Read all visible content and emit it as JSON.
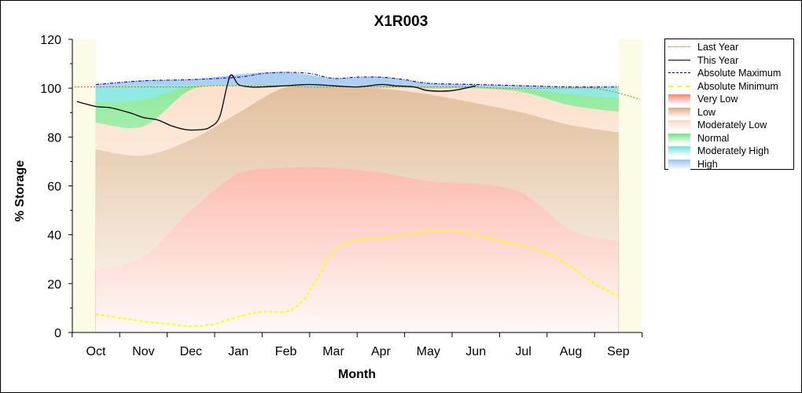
{
  "window": {
    "background": "#ffffff"
  },
  "chart_data": {
    "type": "area",
    "title": "X1R003",
    "xlabel": "Month",
    "ylabel": "% Storage",
    "categories": [
      "Oct",
      "Nov",
      "Dec",
      "Jan",
      "Feb",
      "Mar",
      "Apr",
      "May",
      "Jun",
      "Jul",
      "Aug",
      "Sep"
    ],
    "ylim": [
      0,
      120
    ],
    "yticks": [
      0,
      20,
      40,
      60,
      80,
      100,
      120
    ],
    "grid": false,
    "legend_position": "right",
    "bands": [
      {
        "name": "Very Low",
        "color": "#fa8c78",
        "lower": [
          0,
          0,
          0,
          0,
          0,
          0,
          0,
          0,
          0,
          0,
          0,
          0
        ],
        "upper": [
          25.5,
          31,
          50,
          65,
          67.5,
          67.5,
          65.5,
          62,
          61,
          57,
          42,
          37.5
        ]
      },
      {
        "name": "Low",
        "color": "#dcb48c",
        "lower": [
          25.5,
          31,
          50,
          65,
          67.5,
          67.5,
          65.5,
          62,
          61,
          57,
          42,
          37.5
        ],
        "upper": [
          75,
          72.5,
          79,
          90,
          100.5,
          100.5,
          100,
          97.5,
          94,
          90,
          85,
          82
        ]
      },
      {
        "name": "Moderately Low",
        "color": "#fbdcc3",
        "lower": [
          75,
          72.5,
          79,
          90,
          100.5,
          100.5,
          100,
          97.5,
          94,
          90,
          85,
          82
        ],
        "upper": [
          86,
          84.5,
          99.5,
          101,
          101,
          100.5,
          100.5,
          100,
          100,
          98.5,
          93,
          90.5
        ]
      },
      {
        "name": "Normal",
        "color": "#7de68c",
        "lower": [
          86,
          84.5,
          99.5,
          101,
          101,
          100.5,
          100.5,
          100,
          100,
          98.5,
          93,
          90.5
        ],
        "upper": [
          94.5,
          95.5,
          101,
          101,
          101,
          100.5,
          101,
          100.5,
          100.5,
          100,
          97.5,
          96
        ]
      },
      {
        "name": "Moderately High",
        "color": "#78e6dc",
        "lower": [
          94.5,
          95.5,
          101,
          101,
          101,
          100.5,
          101,
          100.5,
          100.5,
          100,
          97.5,
          96
        ],
        "upper": [
          100,
          101.5,
          101.5,
          101.5,
          101.5,
          101,
          101,
          100.5,
          100.5,
          100.5,
          100.5,
          100.5
        ]
      },
      {
        "name": "High",
        "color": "#a0c8f0",
        "lower": [
          100,
          101.5,
          101.5,
          101.5,
          101.5,
          101,
          101,
          100.5,
          100.5,
          100.5,
          100.5,
          100.5
        ],
        "upper": [
          101.5,
          103,
          103.5,
          105.5,
          106.5,
          104,
          104.5,
          102,
          101.5,
          101,
          100.5,
          100.5
        ]
      }
    ],
    "series": [
      {
        "name": "Last Year",
        "color": "#d2691e",
        "style": "dotted",
        "x": [
          -0.45,
          0,
          0.5,
          1,
          1.5,
          2,
          2.5,
          3,
          3.5,
          4,
          4.5,
          5,
          5.5,
          6,
          6.5,
          7,
          7.5,
          8,
          8.5,
          9,
          9.5,
          10,
          10.5,
          11,
          11.45
        ],
        "values": [
          100.5,
          100.5,
          100.5,
          100.5,
          100.5,
          100.5,
          101,
          101,
          101,
          101,
          100.5,
          100.5,
          100.5,
          100.5,
          100.5,
          100.5,
          100.5,
          100.5,
          100,
          100,
          100,
          100,
          100,
          98,
          95.5
        ]
      },
      {
        "name": "This Year",
        "color": "#000000",
        "style": "solid",
        "x": [
          -0.4,
          0,
          0.3,
          0.7,
          1,
          1.3,
          1.6,
          1.9,
          2.2,
          2.4,
          2.6,
          2.75,
          2.85,
          3.0,
          3.25,
          3.5,
          4,
          4.5,
          5,
          5.5,
          6,
          6.3,
          6.7,
          7,
          7.5,
          8
        ],
        "values": [
          94.5,
          92.5,
          92,
          90,
          88,
          87,
          84.5,
          83,
          83,
          84,
          88,
          100,
          105.5,
          101.5,
          100.5,
          100.5,
          101,
          101.5,
          101,
          100.5,
          101.5,
          101,
          100.5,
          99,
          99,
          101
        ]
      },
      {
        "name": "Absolute Maximum",
        "color": "#0000cd",
        "style": "dashdot",
        "x": [
          0,
          1,
          2,
          3,
          3.5,
          4,
          4.5,
          5,
          5.5,
          6,
          6.5,
          7,
          8,
          9,
          10,
          11
        ],
        "values": [
          101.5,
          103,
          103.5,
          104.5,
          106,
          106.5,
          106,
          104,
          104.5,
          104.5,
          103.5,
          102,
          101.5,
          101,
          100.5,
          100.5
        ]
      },
      {
        "name": "Absolute Minimum",
        "color": "#ffff00",
        "style": "dashed",
        "x": [
          0,
          0.5,
          1,
          1.5,
          2,
          2.5,
          3,
          3.5,
          4,
          4.3,
          4.6,
          5,
          5.5,
          6,
          6.5,
          7,
          7.5,
          8,
          8.5,
          9,
          9.5,
          10,
          10.5,
          11
        ],
        "values": [
          7.5,
          6,
          4.5,
          3.5,
          2.5,
          3.5,
          6.5,
          8.5,
          8.5,
          12,
          20,
          33,
          38,
          38.5,
          40,
          41.5,
          41.5,
          40,
          37.5,
          35.5,
          32.5,
          27,
          20,
          15
        ]
      }
    ]
  },
  "legend": {
    "items": [
      {
        "label": "Last Year",
        "kind": "line",
        "color": "#d2691e",
        "style": "dotted"
      },
      {
        "label": "This Year",
        "kind": "line",
        "color": "#000000",
        "style": "solid"
      },
      {
        "label": "Absolute Maximum",
        "kind": "line",
        "color": "#0000cd",
        "style": "dashdot"
      },
      {
        "label": "Absolute Minimum",
        "kind": "line",
        "color": "#ffff00",
        "style": "dashed"
      },
      {
        "label": "Very Low",
        "kind": "area",
        "color": "#fa8c78"
      },
      {
        "label": "Low",
        "kind": "area",
        "color": "#dcb48c"
      },
      {
        "label": "Moderately Low",
        "kind": "area",
        "color": "#fbdcc3"
      },
      {
        "label": "Normal",
        "kind": "area",
        "color": "#7de68c"
      },
      {
        "label": "Moderately High",
        "kind": "area",
        "color": "#78e6dc"
      },
      {
        "label": "High",
        "kind": "area",
        "color": "#a0c8f0"
      }
    ]
  }
}
